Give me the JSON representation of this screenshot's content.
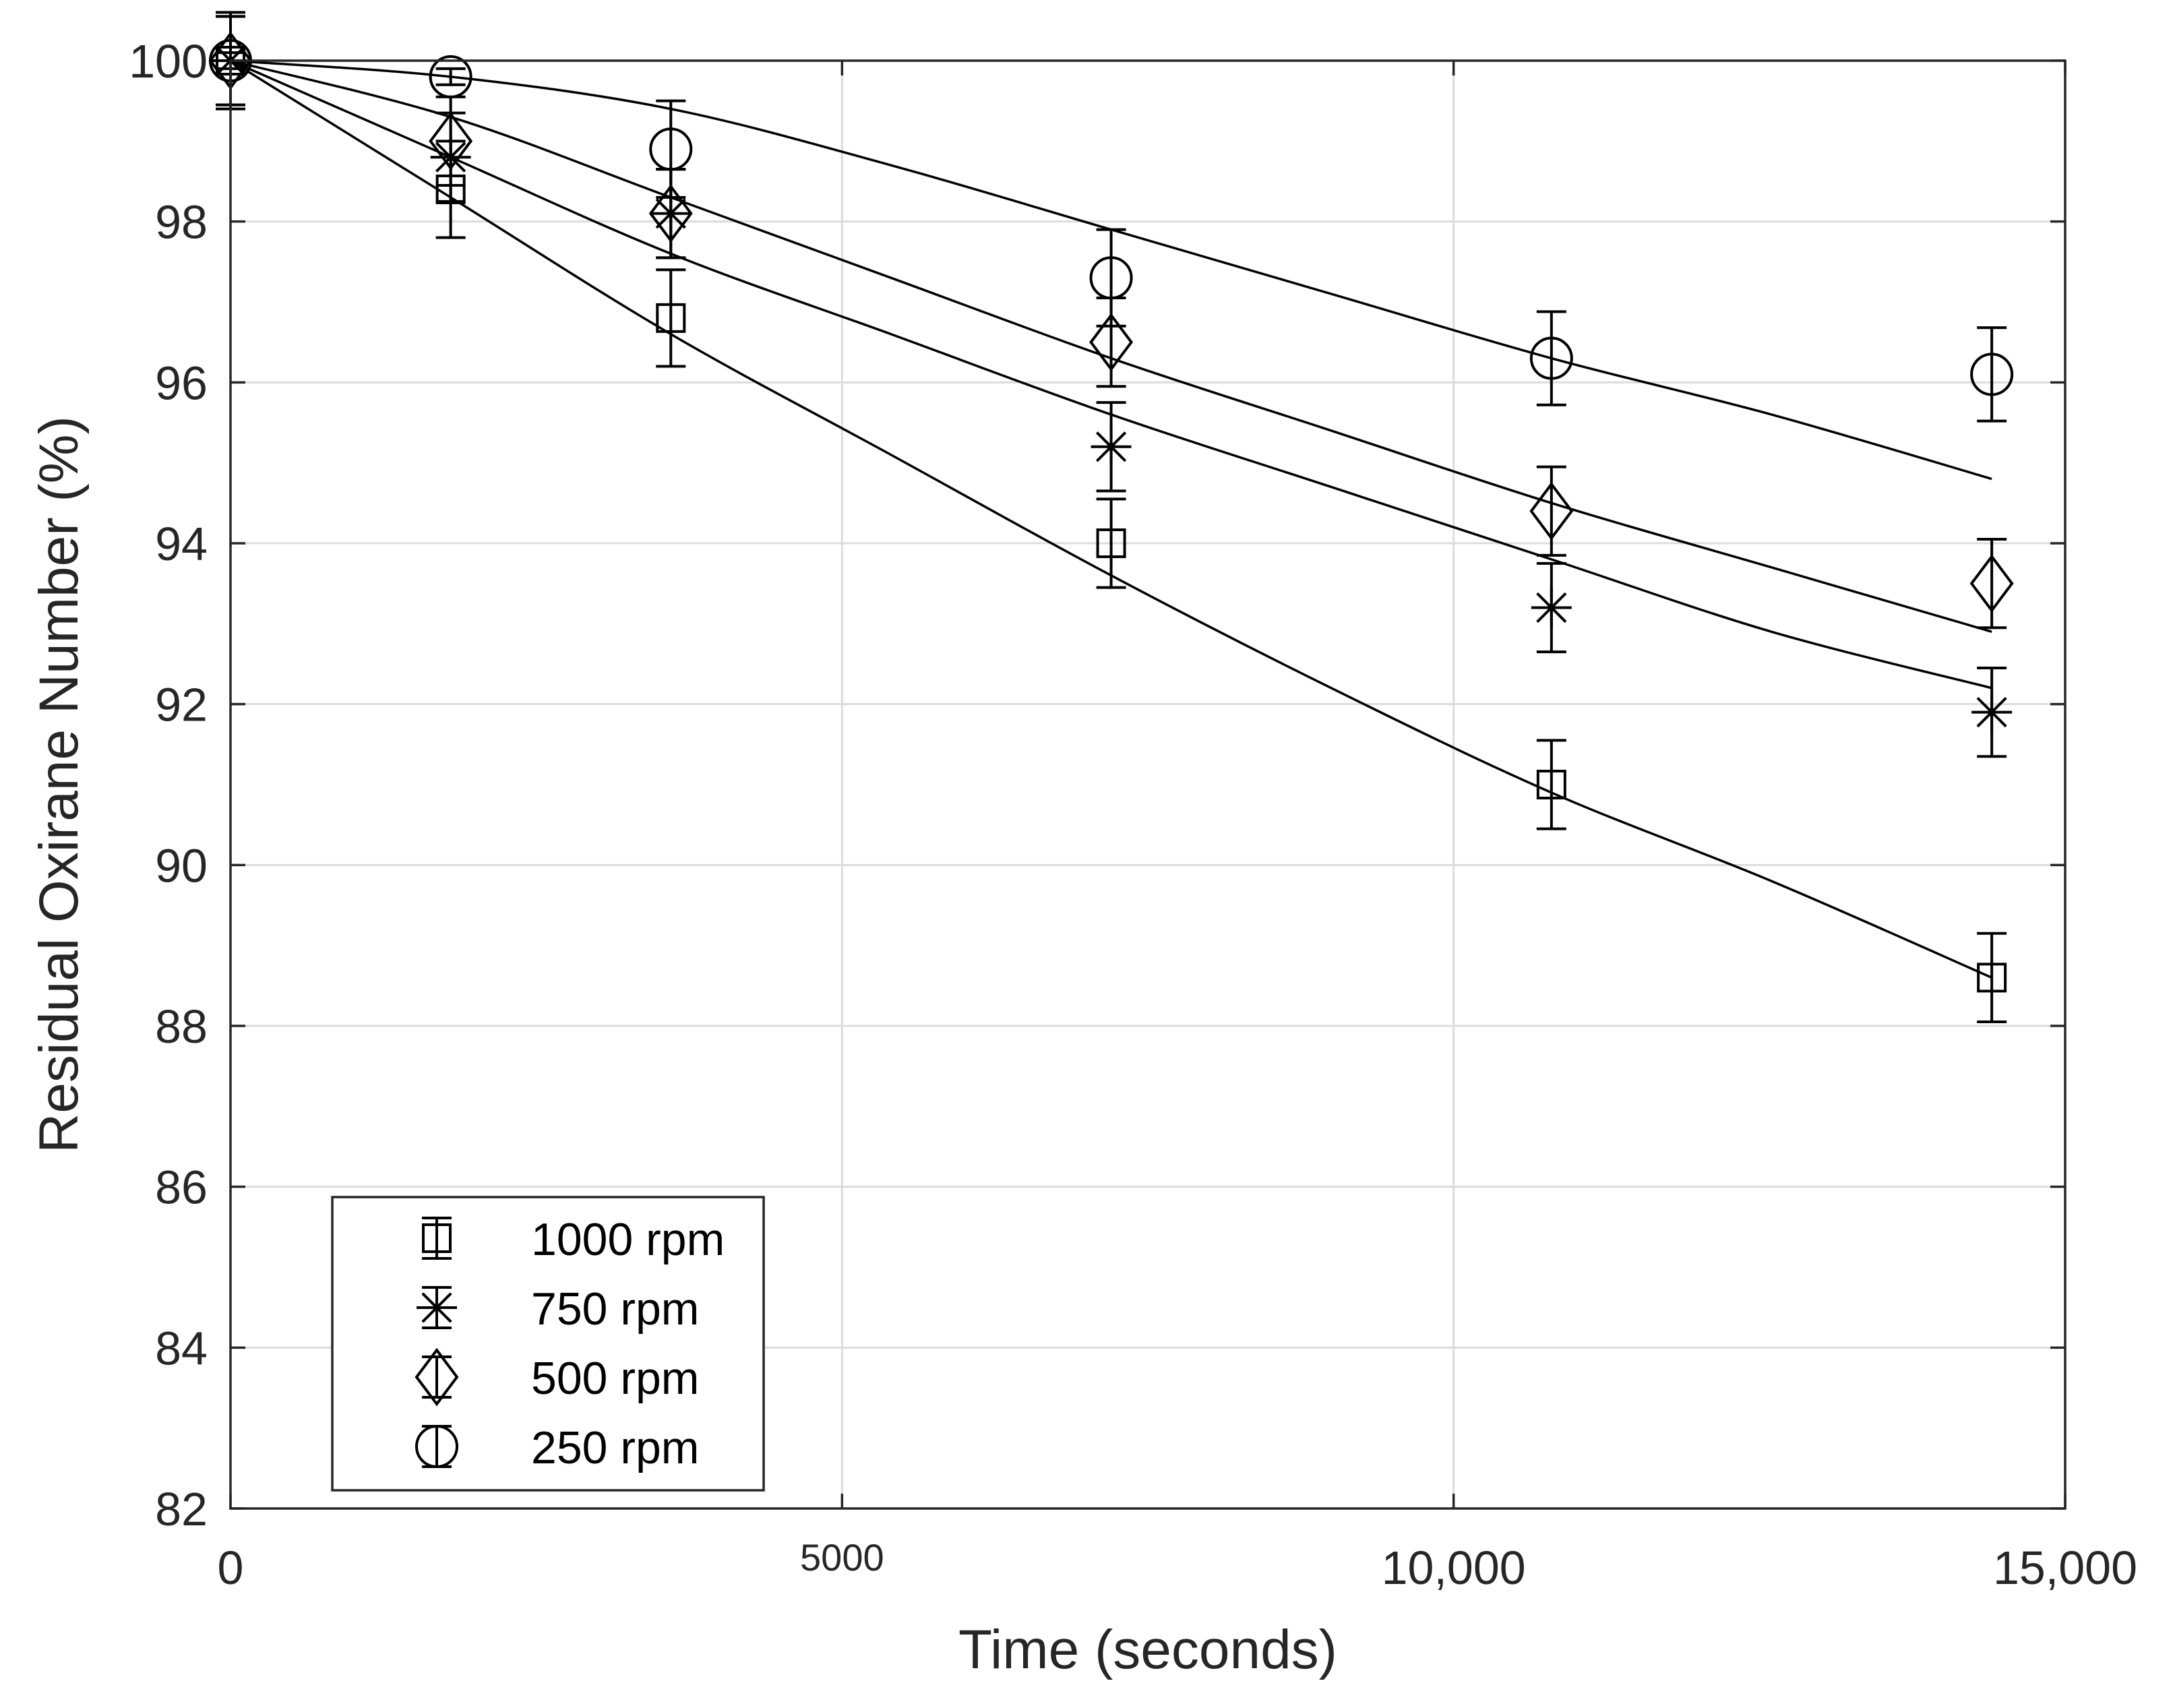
{
  "chart_data": {
    "type": "scatter",
    "title": "",
    "xlabel": "Time (seconds)",
    "ylabel": "Residual Oxirane Number (%)",
    "xlim": [
      0,
      15000
    ],
    "ylim": [
      82,
      100
    ],
    "grid": true,
    "legend_position": "bottom-left",
    "x_ticks": [
      {
        "value": 0,
        "label": "0"
      },
      {
        "value": 5000,
        "label": "5000"
      },
      {
        "value": 10000,
        "label": "10,000"
      },
      {
        "value": 15000,
        "label": "15,000"
      }
    ],
    "y_ticks": [
      {
        "value": 82,
        "label": "82"
      },
      {
        "value": 84,
        "label": "84"
      },
      {
        "value": 86,
        "label": "86"
      },
      {
        "value": 88,
        "label": "88"
      },
      {
        "value": 90,
        "label": "90"
      },
      {
        "value": 92,
        "label": "92"
      },
      {
        "value": 94,
        "label": "94"
      },
      {
        "value": 96,
        "label": "96"
      },
      {
        "value": 98,
        "label": "98"
      },
      {
        "value": 100,
        "label": "100"
      }
    ],
    "series": [
      {
        "name": "1000 rpm",
        "marker": "square",
        "x": [
          0,
          1800,
          3600,
          7200,
          10800,
          14400
        ],
        "y": [
          100,
          98.4,
          96.8,
          94.0,
          91.0,
          88.6
        ],
        "error": [
          0.6,
          0.6,
          0.6,
          0.55,
          0.55,
          0.55
        ],
        "fit": {
          "x": [
            0,
            1800,
            3600,
            5400,
            7200,
            9000,
            10800,
            12600,
            14400
          ],
          "y": [
            100,
            98.3,
            96.6,
            95.1,
            93.6,
            92.2,
            90.9,
            89.8,
            88.6
          ]
        }
      },
      {
        "name": "750 rpm",
        "marker": "asterisk",
        "x": [
          0,
          1800,
          3600,
          7200,
          10800,
          14400
        ],
        "y": [
          100,
          98.8,
          98.1,
          95.2,
          93.2,
          91.9
        ],
        "error": [
          0.55,
          0.55,
          0.55,
          0.55,
          0.55,
          0.55
        ],
        "fit": {
          "x": [
            0,
            1800,
            3600,
            5400,
            7200,
            9000,
            10800,
            12600,
            14400
          ],
          "y": [
            100,
            98.8,
            97.6,
            96.6,
            95.6,
            94.7,
            93.8,
            92.9,
            92.2
          ]
        }
      },
      {
        "name": "500 rpm",
        "marker": "diamond",
        "x": [
          0,
          1800,
          3600,
          7200,
          10800,
          14400
        ],
        "y": [
          100,
          99.0,
          98.1,
          96.5,
          94.4,
          93.5
        ],
        "error": [
          0.55,
          0.55,
          0.55,
          0.55,
          0.55,
          0.55
        ],
        "fit": {
          "x": [
            0,
            1800,
            3600,
            5400,
            7200,
            9000,
            10800,
            12600,
            14400
          ],
          "y": [
            100,
            99.3,
            98.3,
            97.3,
            96.3,
            95.4,
            94.5,
            93.7,
            92.9
          ]
        }
      },
      {
        "name": "250 rpm",
        "marker": "circle",
        "x": [
          0,
          1800,
          3600,
          7200,
          10800,
          14400
        ],
        "y": [
          100,
          99.8,
          98.9,
          97.3,
          96.3,
          96.1
        ],
        "error": [
          0.1,
          0.1,
          0.6,
          0.6,
          0.58,
          0.58
        ],
        "fit": {
          "x": [
            0,
            1800,
            3600,
            5400,
            7200,
            9000,
            10800,
            12600,
            14400
          ],
          "y": [
            100,
            99.8,
            99.4,
            98.7,
            97.9,
            97.1,
            96.3,
            95.6,
            94.8
          ]
        }
      }
    ]
  }
}
